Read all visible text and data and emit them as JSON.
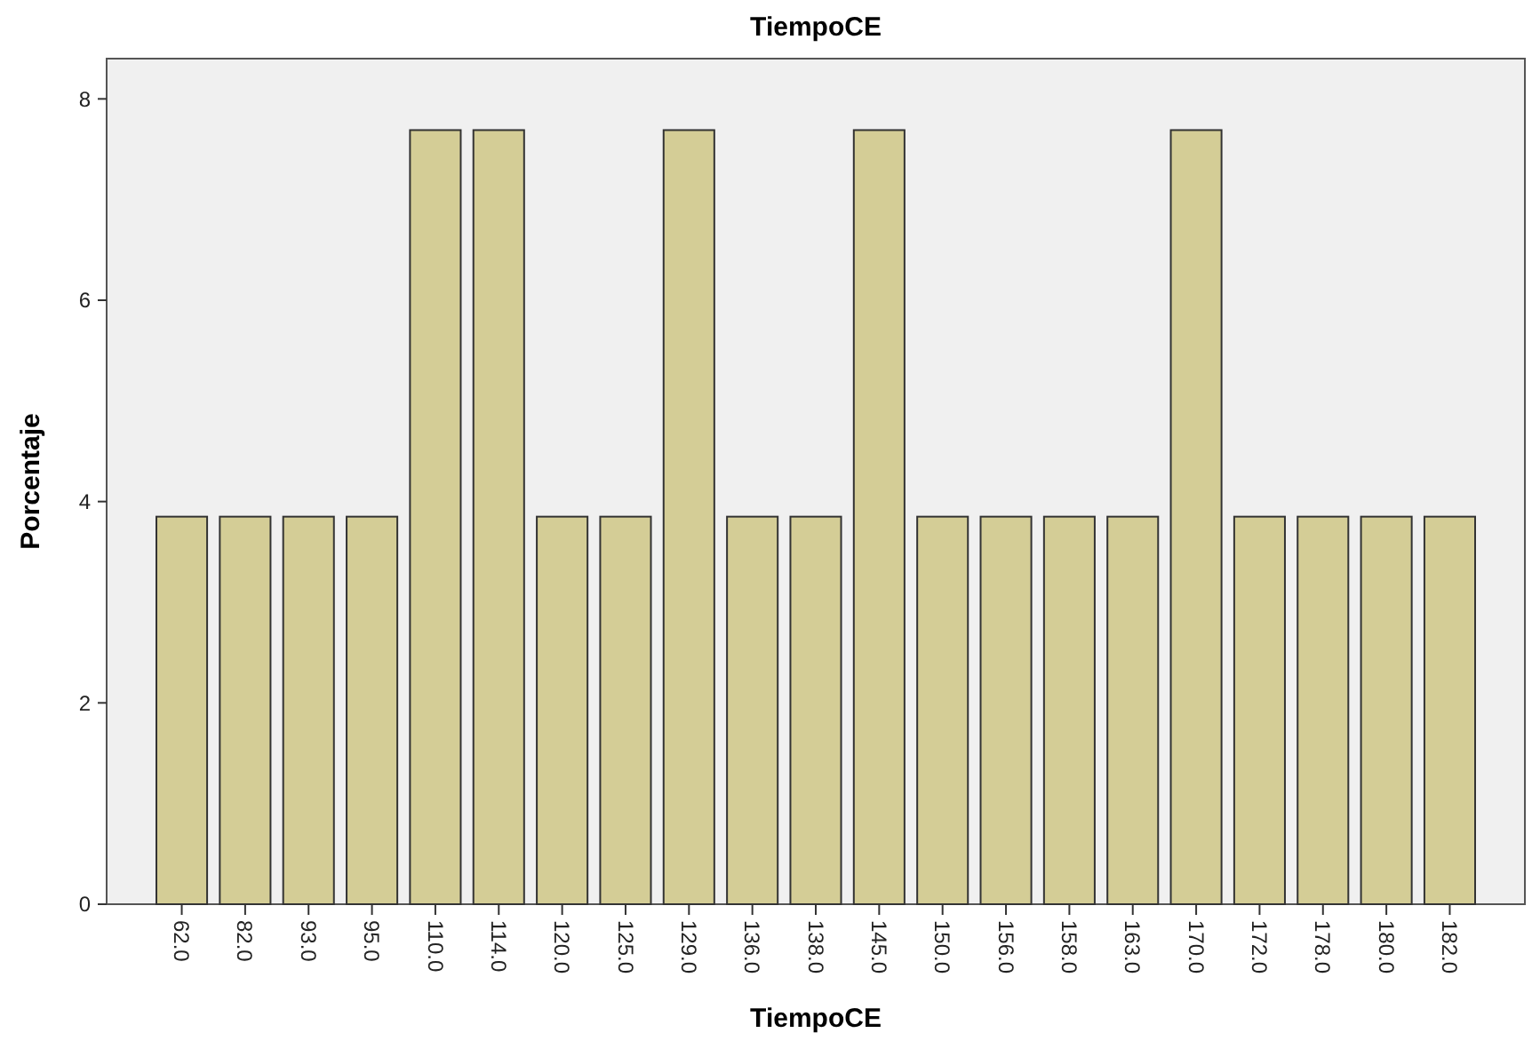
{
  "chart_data": {
    "type": "bar",
    "title": "TiempoCE",
    "xlabel": "TiempoCE",
    "ylabel": "Porcentaje",
    "categories": [
      "62.0",
      "82.0",
      "93.0",
      "95.0",
      "110.0",
      "114.0",
      "120.0",
      "125.0",
      "129.0",
      "136.0",
      "138.0",
      "145.0",
      "150.0",
      "156.0",
      "158.0",
      "163.0",
      "170.0",
      "172.0",
      "178.0",
      "180.0",
      "182.0"
    ],
    "values": [
      3.85,
      3.85,
      3.85,
      3.85,
      7.69,
      7.69,
      3.85,
      3.85,
      7.69,
      3.85,
      3.85,
      7.69,
      3.85,
      3.85,
      3.85,
      3.85,
      7.69,
      3.85,
      3.85,
      3.85,
      3.85
    ],
    "color": "#d4cd96",
    "ylim": [
      0,
      8.4
    ],
    "yticks": [
      0,
      2,
      4,
      6,
      8
    ],
    "grid": false
  }
}
